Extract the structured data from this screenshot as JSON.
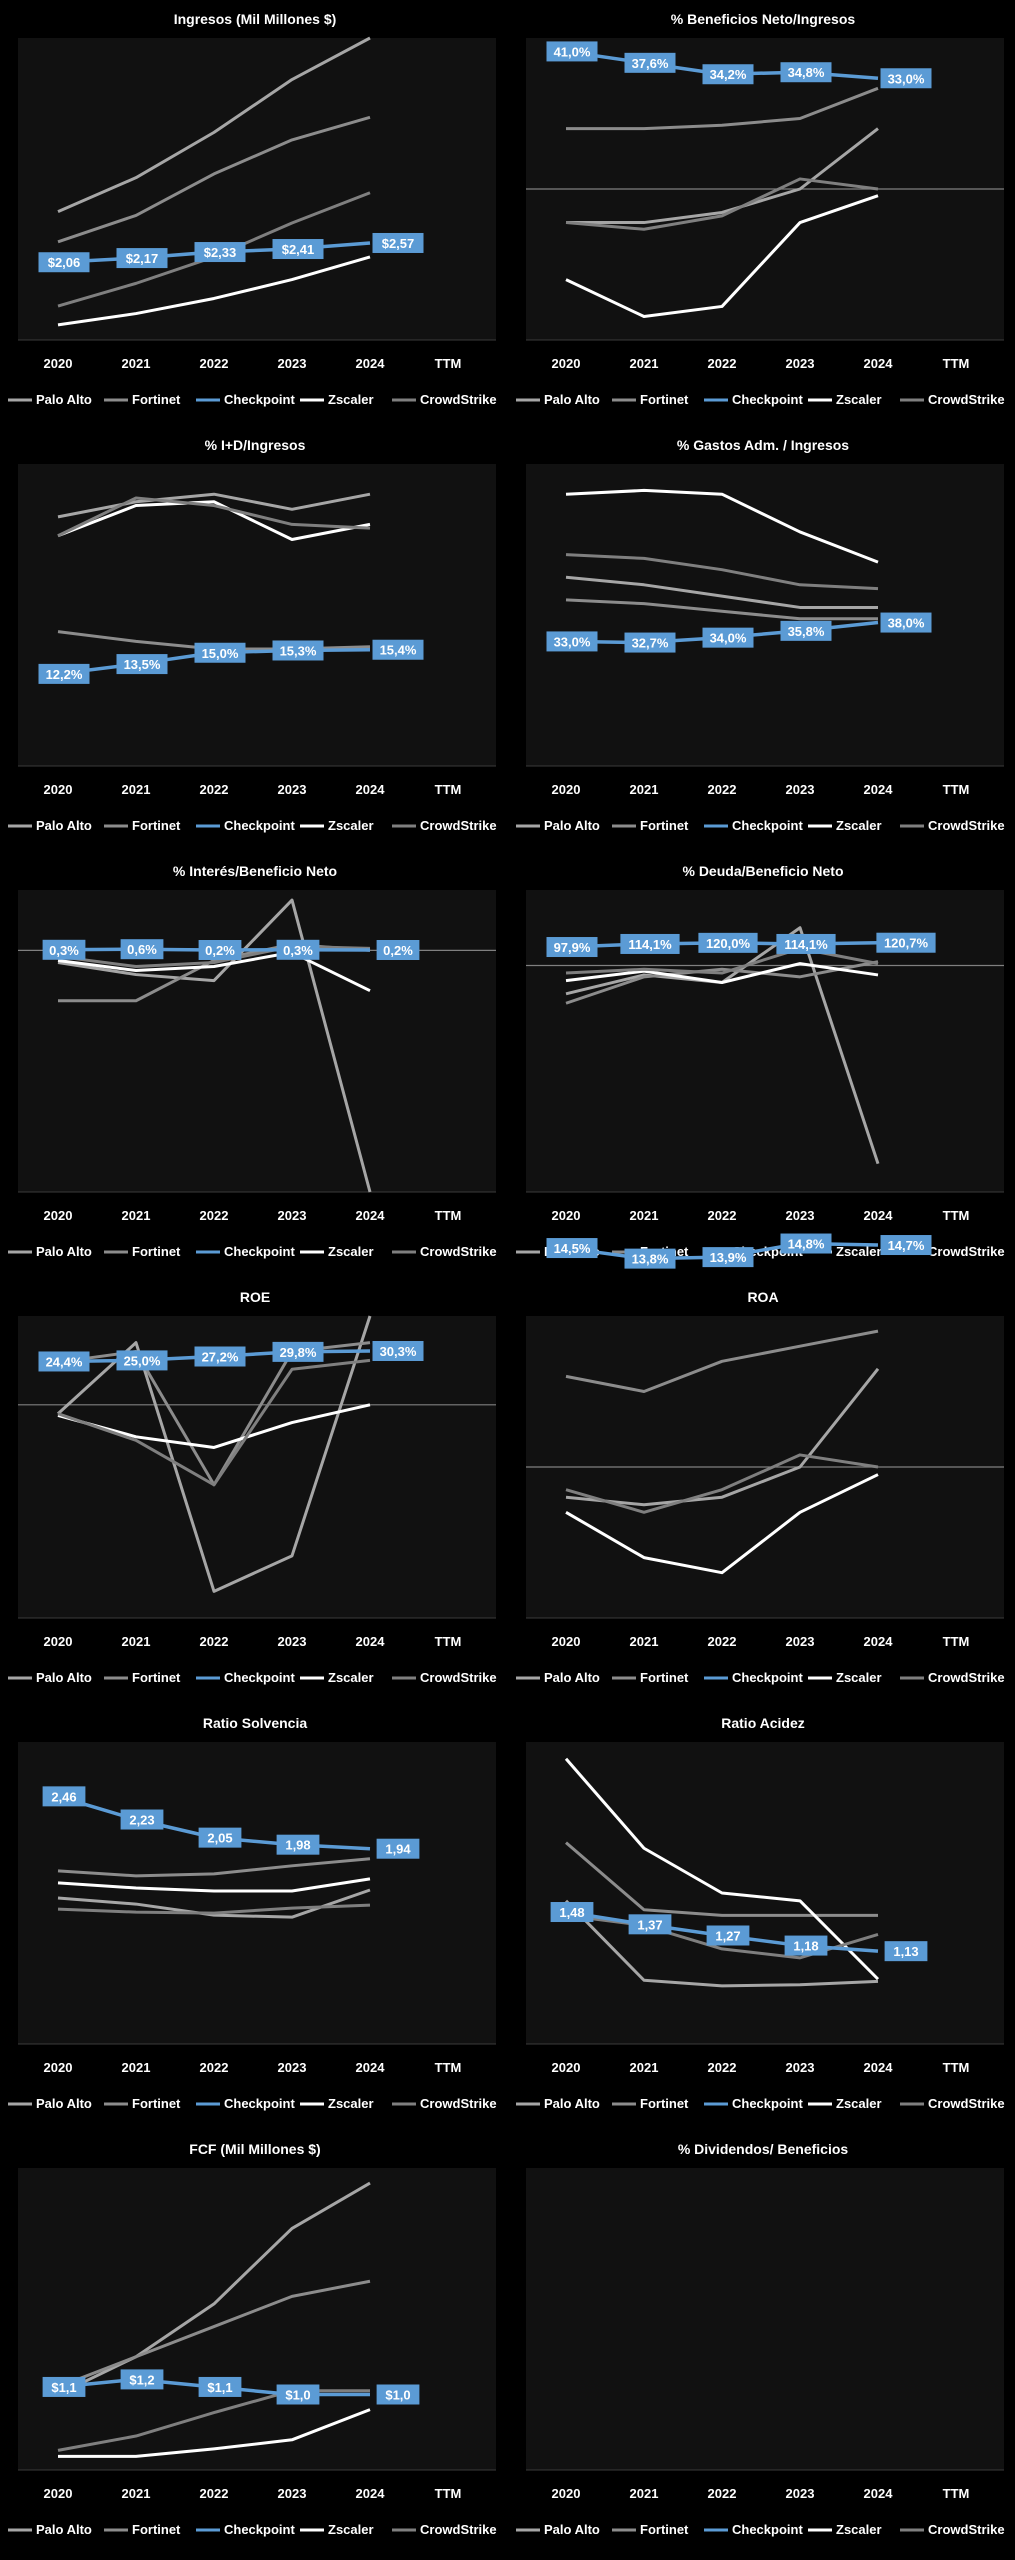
{
  "colors": {
    "background": "#000000",
    "plot_area": "#111111",
    "palo_alto": "#a6a6a6",
    "fortinet": "#8c8c8c",
    "checkpoint": "#5b9bd5",
    "zscaler": "#ffffff",
    "crowdstrike": "#7f7f7f",
    "label_fill": "#5b9bd5",
    "label_text": "#ffffff",
    "text": "#ffffff",
    "zero_line": "#808080"
  },
  "legend": [
    "Palo Alto",
    "Fortinet",
    "Checkpoint",
    "Zscaler",
    "CrowdStrike"
  ],
  "x_categories": [
    "2020",
    "2021",
    "2022",
    "2023",
    "2024",
    "TTM"
  ],
  "chart_data": [
    {
      "id": "ingresos",
      "type": "line",
      "title": "Ingresos (Mil Millones $)",
      "ylim": [
        0,
        8
      ],
      "zero_line": false,
      "series": [
        {
          "name": "Palo Alto",
          "values": [
            3.4,
            4.3,
            5.5,
            6.9,
            8.0
          ]
        },
        {
          "name": "Fortinet",
          "values": [
            2.6,
            3.3,
            4.4,
            5.3,
            5.9
          ]
        },
        {
          "name": "Checkpoint",
          "values": [
            2.06,
            2.17,
            2.33,
            2.41,
            2.57
          ],
          "labels": [
            "$2,06",
            "$2,17",
            "$2,33",
            "$2,41",
            "$2,57"
          ]
        },
        {
          "name": "Zscaler",
          "values": [
            0.4,
            0.7,
            1.1,
            1.6,
            2.2
          ]
        },
        {
          "name": "CrowdStrike",
          "values": [
            0.9,
            1.5,
            2.2,
            3.1,
            3.9
          ]
        }
      ]
    },
    {
      "id": "beneficio",
      "type": "line",
      "title": "% Beneficios Neto/Ingresos",
      "ylim": [
        -0.45,
        0.45
      ],
      "zero_line": true,
      "series": [
        {
          "name": "Palo Alto",
          "values": [
            -0.1,
            -0.1,
            -0.07,
            0.0,
            0.18
          ]
        },
        {
          "name": "Fortinet",
          "values": [
            0.18,
            0.18,
            0.19,
            0.21,
            0.3
          ]
        },
        {
          "name": "Checkpoint",
          "values": [
            0.41,
            0.376,
            0.342,
            0.348,
            0.33
          ],
          "labels": [
            "41,0%",
            "37,6%",
            "34,2%",
            "34,8%",
            "33,0%"
          ]
        },
        {
          "name": "Zscaler",
          "values": [
            -0.27,
            -0.38,
            -0.35,
            -0.1,
            -0.02
          ]
        },
        {
          "name": "CrowdStrike",
          "values": [
            -0.1,
            -0.12,
            -0.08,
            0.03,
            0.0
          ]
        }
      ]
    },
    {
      "id": "id",
      "type": "line",
      "title": "% I+D/Ingresos",
      "ylim": [
        0,
        0.4
      ],
      "zero_line": false,
      "series": [
        {
          "name": "Palo Alto",
          "values": [
            0.33,
            0.35,
            0.36,
            0.34,
            0.36
          ]
        },
        {
          "name": "Fortinet",
          "values": [
            0.178,
            0.165,
            0.155,
            0.155,
            0.158
          ]
        },
        {
          "name": "Checkpoint",
          "values": [
            0.122,
            0.135,
            0.15,
            0.153,
            0.154
          ],
          "labels": [
            "12,2%",
            "13,5%",
            "15,0%",
            "15,3%",
            "15,4%"
          ]
        },
        {
          "name": "Zscaler",
          "values": [
            0.305,
            0.345,
            0.35,
            0.3,
            0.32
          ]
        },
        {
          "name": "CrowdStrike",
          "values": [
            0.305,
            0.355,
            0.345,
            0.32,
            0.315
          ]
        }
      ]
    },
    {
      "id": "gastos",
      "type": "line",
      "title": "% Gastos Adm.  / Ingresos",
      "ylim": [
        0,
        0.8
      ],
      "zero_line": false,
      "series": [
        {
          "name": "Palo Alto",
          "values": [
            0.5,
            0.48,
            0.45,
            0.42,
            0.42
          ]
        },
        {
          "name": "Fortinet",
          "values": [
            0.44,
            0.43,
            0.41,
            0.39,
            0.39
          ]
        },
        {
          "name": "Checkpoint",
          "values": [
            0.33,
            0.327,
            0.34,
            0.358,
            0.38
          ],
          "labels": [
            "33,0%",
            "32,7%",
            "34,0%",
            "35,8%",
            "38,0%"
          ]
        },
        {
          "name": "Zscaler",
          "values": [
            0.72,
            0.73,
            0.72,
            0.62,
            0.54
          ]
        },
        {
          "name": "CrowdStrike",
          "values": [
            0.56,
            0.55,
            0.52,
            0.48,
            0.47
          ]
        }
      ]
    },
    {
      "id": "interes",
      "type": "line",
      "title": "% Interés/Beneficio  Neto",
      "ylim": [
        -1.2,
        0.3
      ],
      "zero_line": true,
      "series": [
        {
          "name": "Palo Alto",
          "values": [
            -0.06,
            -0.12,
            -0.15,
            0.25,
            -1.2
          ]
        },
        {
          "name": "Fortinet",
          "values": [
            -0.25,
            -0.25,
            -0.05,
            0.03,
            0.0
          ]
        },
        {
          "name": "Checkpoint",
          "values": [
            0.003,
            0.006,
            0.002,
            0.003,
            0.002
          ],
          "labels": [
            "0,3%",
            "0,6%",
            "0,2%",
            "0,3%",
            "0,2%"
          ]
        },
        {
          "name": "Zscaler",
          "values": [
            -0.05,
            -0.1,
            -0.08,
            -0.01,
            -0.2
          ]
        },
        {
          "name": "CrowdStrike",
          "values": [
            -0.03,
            -0.08,
            -0.06,
            0.02,
            0.01
          ]
        }
      ]
    },
    {
      "id": "deuda",
      "type": "line",
      "title": "% Deuda/Beneficio  Neto",
      "ylim": [
        -12,
        4
      ],
      "zero_line": true,
      "series": [
        {
          "name": "Palo Alto",
          "values": [
            -1.5,
            -0.5,
            -0.9,
            2.0,
            -10.5
          ]
        },
        {
          "name": "Fortinet",
          "values": [
            -2.0,
            -0.6,
            -0.2,
            -0.6,
            0.2
          ]
        },
        {
          "name": "Checkpoint",
          "values": [
            0.979,
            1.141,
            1.2,
            1.141,
            1.207
          ],
          "labels": [
            "97,9%",
            "114,1%",
            "120,0%",
            "114,1%",
            "120,7%"
          ]
        },
        {
          "name": "Zscaler",
          "values": [
            -0.8,
            -0.3,
            -0.9,
            0.1,
            -0.5
          ]
        },
        {
          "name": "CrowdStrike",
          "values": [
            -0.4,
            -0.2,
            -0.4,
            0.9,
            0.1
          ]
        }
      ]
    },
    {
      "id": "roe",
      "type": "line",
      "title": "ROE",
      "ylim": [
        -1.2,
        0.5
      ],
      "zero_line": true,
      "series": [
        {
          "name": "Palo Alto",
          "values": [
            -0.05,
            0.35,
            -1.05,
            -0.85,
            0.5
          ]
        },
        {
          "name": "Fortinet",
          "values": [
            0.24,
            0.3,
            -0.45,
            0.3,
            0.35
          ]
        },
        {
          "name": "Checkpoint",
          "values": [
            0.244,
            0.25,
            0.272,
            0.298,
            0.303
          ],
          "labels": [
            "24,4%",
            "25,0%",
            "27,2%",
            "29,8%",
            "30,3%"
          ]
        },
        {
          "name": "Zscaler",
          "values": [
            -0.06,
            -0.18,
            -0.24,
            -0.1,
            0.0
          ]
        },
        {
          "name": "CrowdStrike",
          "values": [
            -0.05,
            -0.2,
            -0.45,
            0.2,
            0.25
          ]
        }
      ]
    },
    {
      "id": "roa",
      "type": "line",
      "title": "ROA",
      "ylim": [
        -0.1,
        0.1
      ],
      "zero_line": true,
      "series": [
        {
          "name": "Palo Alto",
          "values": [
            -0.02,
            -0.025,
            -0.02,
            0.0,
            0.065
          ]
        },
        {
          "name": "Fortinet",
          "values": [
            0.06,
            0.05,
            0.07,
            0.08,
            0.09
          ]
        },
        {
          "name": "Checkpoint",
          "values": [
            0.145,
            0.138,
            0.139,
            0.148,
            0.147
          ],
          "labels": [
            "14,5%",
            "13,8%",
            "13,9%",
            "14,8%",
            "14,7%"
          ]
        },
        {
          "name": "Zscaler",
          "values": [
            -0.03,
            -0.06,
            -0.07,
            -0.03,
            -0.005
          ]
        },
        {
          "name": "CrowdStrike",
          "values": [
            -0.015,
            -0.03,
            -0.015,
            0.008,
            0.0
          ]
        }
      ]
    },
    {
      "id": "solvencia",
      "type": "line",
      "title": "Ratio Solvencia",
      "ylim": [
        0,
        3
      ],
      "zero_line": false,
      "series": [
        {
          "name": "Palo Alto",
          "values": [
            1.45,
            1.39,
            1.28,
            1.26,
            1.53
          ]
        },
        {
          "name": "Fortinet",
          "values": [
            1.72,
            1.67,
            1.69,
            1.77,
            1.84
          ]
        },
        {
          "name": "Checkpoint",
          "values": [
            2.46,
            2.23,
            2.05,
            1.98,
            1.94
          ],
          "labels": [
            "2,46",
            "2,23",
            "2,05",
            "1,98",
            "1,94"
          ]
        },
        {
          "name": "Zscaler",
          "values": [
            1.6,
            1.55,
            1.52,
            1.52,
            1.64
          ]
        },
        {
          "name": "CrowdStrike",
          "values": [
            1.34,
            1.31,
            1.3,
            1.35,
            1.38
          ]
        }
      ]
    },
    {
      "id": "acidez",
      "type": "line",
      "title": "Ratio Acidez",
      "ylim": [
        0.3,
        3.0
      ],
      "zero_line": false,
      "series": [
        {
          "name": "Palo Alto",
          "values": [
            1.58,
            0.87,
            0.82,
            0.83,
            0.86
          ]
        },
        {
          "name": "Fortinet",
          "values": [
            2.1,
            1.5,
            1.45,
            1.45,
            1.45
          ]
        },
        {
          "name": "Checkpoint",
          "values": [
            1.48,
            1.37,
            1.27,
            1.18,
            1.13
          ],
          "labels": [
            "1,48",
            "1,37",
            "1,27",
            "1,18",
            "1,13"
          ]
        },
        {
          "name": "Zscaler",
          "values": [
            2.85,
            2.05,
            1.65,
            1.58,
            0.88
          ]
        },
        {
          "name": "CrowdStrike",
          "values": [
            1.45,
            1.36,
            1.15,
            1.07,
            1.28
          ]
        }
      ]
    },
    {
      "id": "fcf",
      "type": "line",
      "title": "FCF (Mil Millones $)",
      "ylim": [
        0,
        4
      ],
      "zero_line": false,
      "series": [
        {
          "name": "Palo Alto",
          "values": [
            1.0,
            1.5,
            2.2,
            3.2,
            3.8
          ]
        },
        {
          "name": "Fortinet",
          "values": [
            1.1,
            1.5,
            1.9,
            2.3,
            2.5
          ]
        },
        {
          "name": "Checkpoint",
          "values": [
            1.1,
            1.2,
            1.1,
            1.0,
            1.0
          ],
          "labels": [
            "$1,1",
            "$1,2",
            "$1,1",
            "$1,0",
            "$1,0"
          ]
        },
        {
          "name": "Zscaler",
          "values": [
            0.18,
            0.18,
            0.28,
            0.4,
            0.8
          ]
        },
        {
          "name": "CrowdStrike",
          "values": [
            0.26,
            0.45,
            0.76,
            1.05,
            1.05
          ]
        }
      ]
    },
    {
      "id": "dividendos",
      "type": "line",
      "title": "% Dividendos/  Beneficios",
      "ylim": [
        0,
        1
      ],
      "zero_line": false,
      "series": []
    }
  ]
}
